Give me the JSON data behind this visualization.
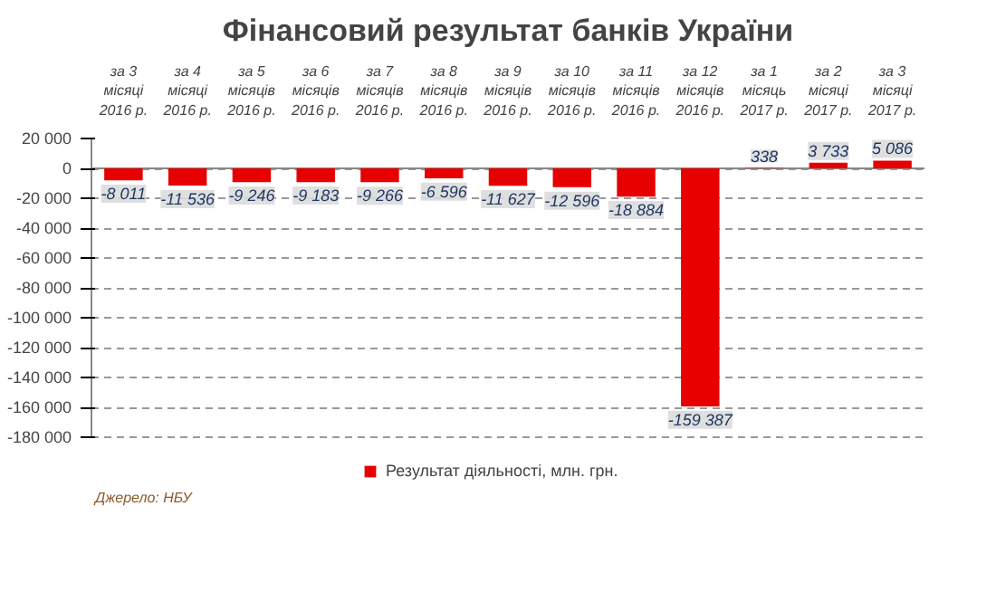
{
  "chart_data": {
    "type": "bar",
    "title": "Фінансовий результат банків України",
    "categories": [
      "за 3\nмісяці\n2016 р.",
      "за 4\nмісяці\n2016 р.",
      "за 5\nмісяців\n2016 р.",
      "за 6\nмісяців\n2016 р.",
      "за 7\nмісяців\n2016 р.",
      "за 8\nмісяців\n2016 р.",
      "за 9\nмісяців\n2016 р.",
      "за 10\nмісяців\n2016 р.",
      "за 11\nмісяців\n2016 р.",
      "за 12\nмісяців\n2016 р.",
      "за 1\nмісяць\n2017 р.",
      "за 2\nмісяці\n2017 р.",
      "за 3\nмісяці\n2017 р."
    ],
    "series": [
      {
        "name": "Результат діяльності, млн. грн.",
        "color": "#e60000",
        "values": [
          -8011,
          -11536,
          -9246,
          -9183,
          -9266,
          -6596,
          -11627,
          -12596,
          -18884,
          -159387,
          338,
          3733,
          5086
        ],
        "value_labels": [
          "-8 011",
          "-11 536",
          "-9 246",
          "-9 183",
          "-9 266",
          "-6 596",
          "-11 627",
          "-12 596",
          "-18 884",
          "-159 387",
          "338",
          "3 733",
          "5 086"
        ]
      }
    ],
    "ylim": [
      -180000,
      20000
    ],
    "yticks": [
      {
        "value": 20000,
        "label": "20 000"
      },
      0,
      {
        "value": -20000,
        "label": "-20 000"
      },
      {
        "value": -40000,
        "label": "-40 000"
      },
      {
        "value": -60000,
        "label": "-60 000"
      },
      {
        "value": -80000,
        "label": "-80 000"
      },
      {
        "value": -100000,
        "label": "-100 000"
      },
      {
        "value": -120000,
        "label": "-120 000"
      },
      {
        "value": -140000,
        "label": "-140 000"
      },
      {
        "value": -160000,
        "label": "-160 000"
      },
      {
        "value": -180000,
        "label": "-180 000"
      }
    ],
    "grid": "y",
    "legend": "bottom",
    "annotations": [
      "Джерело: НБУ"
    ]
  }
}
